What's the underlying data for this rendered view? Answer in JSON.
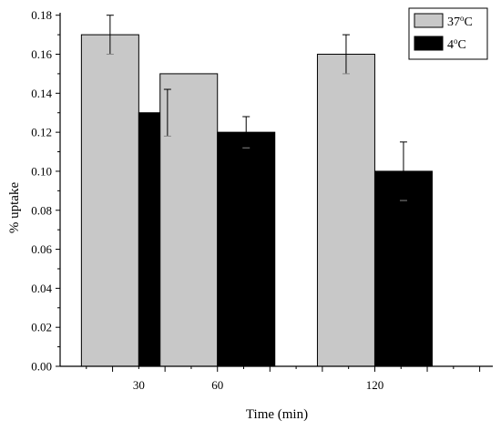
{
  "chart_data": {
    "type": "bar",
    "categories": [
      "30",
      "60",
      "120"
    ],
    "x_positions": [
      30,
      60,
      120
    ],
    "xlim": [
      0,
      165
    ],
    "series": [
      {
        "name": "37°C",
        "name_base": "37",
        "name_sup": "o",
        "name_unit": "C",
        "values": [
          0.17,
          0.15,
          0.16
        ],
        "errors": [
          0.01,
          null,
          0.01
        ],
        "color": "#c8c8c8"
      },
      {
        "name": "4°C",
        "name_base": "4",
        "name_sup": "o",
        "name_unit": "C",
        "values": [
          0.13,
          0.12,
          0.1
        ],
        "errors": [
          0.012,
          0.008,
          0.015
        ],
        "color": "#000000"
      }
    ],
    "xlabel": "Time (min)",
    "ylabel": "% uptake",
    "ylim": [
      0,
      0.185
    ],
    "y_ticks": [
      "0.00",
      "0.02",
      "0.04",
      "0.06",
      "0.08",
      "0.10",
      "0.12",
      "0.14",
      "0.16",
      "0.18"
    ],
    "legend_position": "top-right",
    "grid": false
  }
}
